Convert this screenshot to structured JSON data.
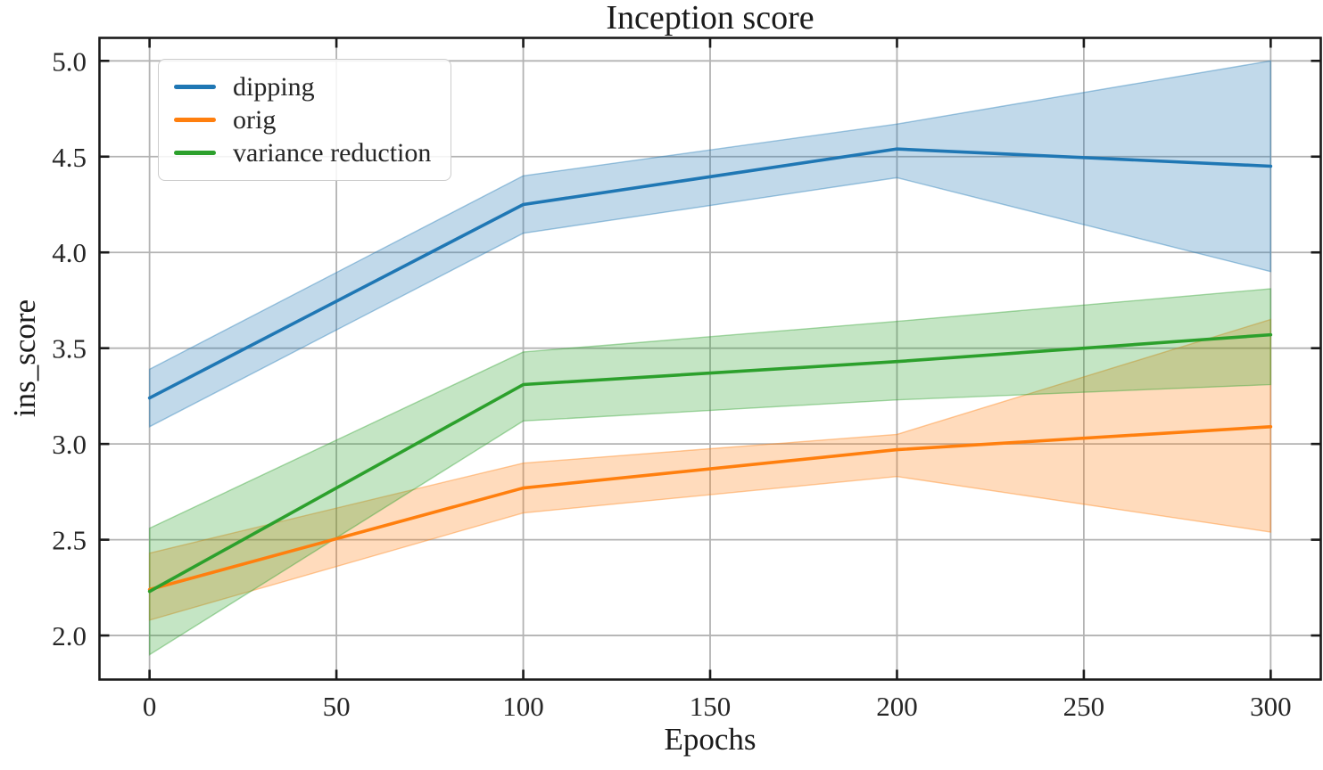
{
  "figure": {
    "background": "#ffffff"
  },
  "chart_data": {
    "type": "line",
    "title": "Inception score",
    "xlabel": "Epochs",
    "ylabel": "ins_score",
    "x": [
      0,
      100,
      200,
      300
    ],
    "series": [
      {
        "name": "dipping",
        "color": "#1f77b4",
        "values": [
          3.24,
          4.25,
          4.54,
          4.45
        ],
        "band_lower": [
          3.09,
          4.1,
          4.39,
          3.9
        ],
        "band_upper": [
          3.39,
          4.4,
          4.67,
          5.0
        ]
      },
      {
        "name": "orig",
        "color": "#ff7f0e",
        "values": [
          2.24,
          2.77,
          2.97,
          3.09
        ],
        "band_lower": [
          2.08,
          2.64,
          2.83,
          2.54
        ],
        "band_upper": [
          2.43,
          2.9,
          3.05,
          3.65
        ]
      },
      {
        "name": "variance reduction",
        "color": "#2ca02c",
        "values": [
          2.23,
          3.31,
          3.43,
          3.57
        ],
        "band_lower": [
          1.9,
          3.12,
          3.23,
          3.31
        ],
        "band_upper": [
          2.56,
          3.48,
          3.64,
          3.81
        ]
      }
    ],
    "xticks": [
      {
        "v": 0,
        "label": "0"
      },
      {
        "v": 50,
        "label": "50"
      },
      {
        "v": 100,
        "label": "100"
      },
      {
        "v": 150,
        "label": "150"
      },
      {
        "v": 200,
        "label": "200"
      },
      {
        "v": 250,
        "label": "250"
      },
      {
        "v": 300,
        "label": "300"
      }
    ],
    "yticks": [
      {
        "v": 2.0,
        "label": "2.0"
      },
      {
        "v": 2.5,
        "label": "2.5"
      },
      {
        "v": 3.0,
        "label": "3.0"
      },
      {
        "v": 3.5,
        "label": "3.5"
      },
      {
        "v": 4.0,
        "label": "4.0"
      },
      {
        "v": 4.5,
        "label": "4.5"
      },
      {
        "v": 5.0,
        "label": "5.0"
      }
    ],
    "xlim": [
      -13.4,
      313.4
    ],
    "ylim": [
      1.77,
      5.12
    ],
    "grid": true,
    "legend_position": "upper left",
    "band_alpha": 0.28,
    "grid_color": "#b3b3b3",
    "spine_color": "#1a1a1a",
    "text_color": "#262626",
    "tick_label_size": 31
  }
}
